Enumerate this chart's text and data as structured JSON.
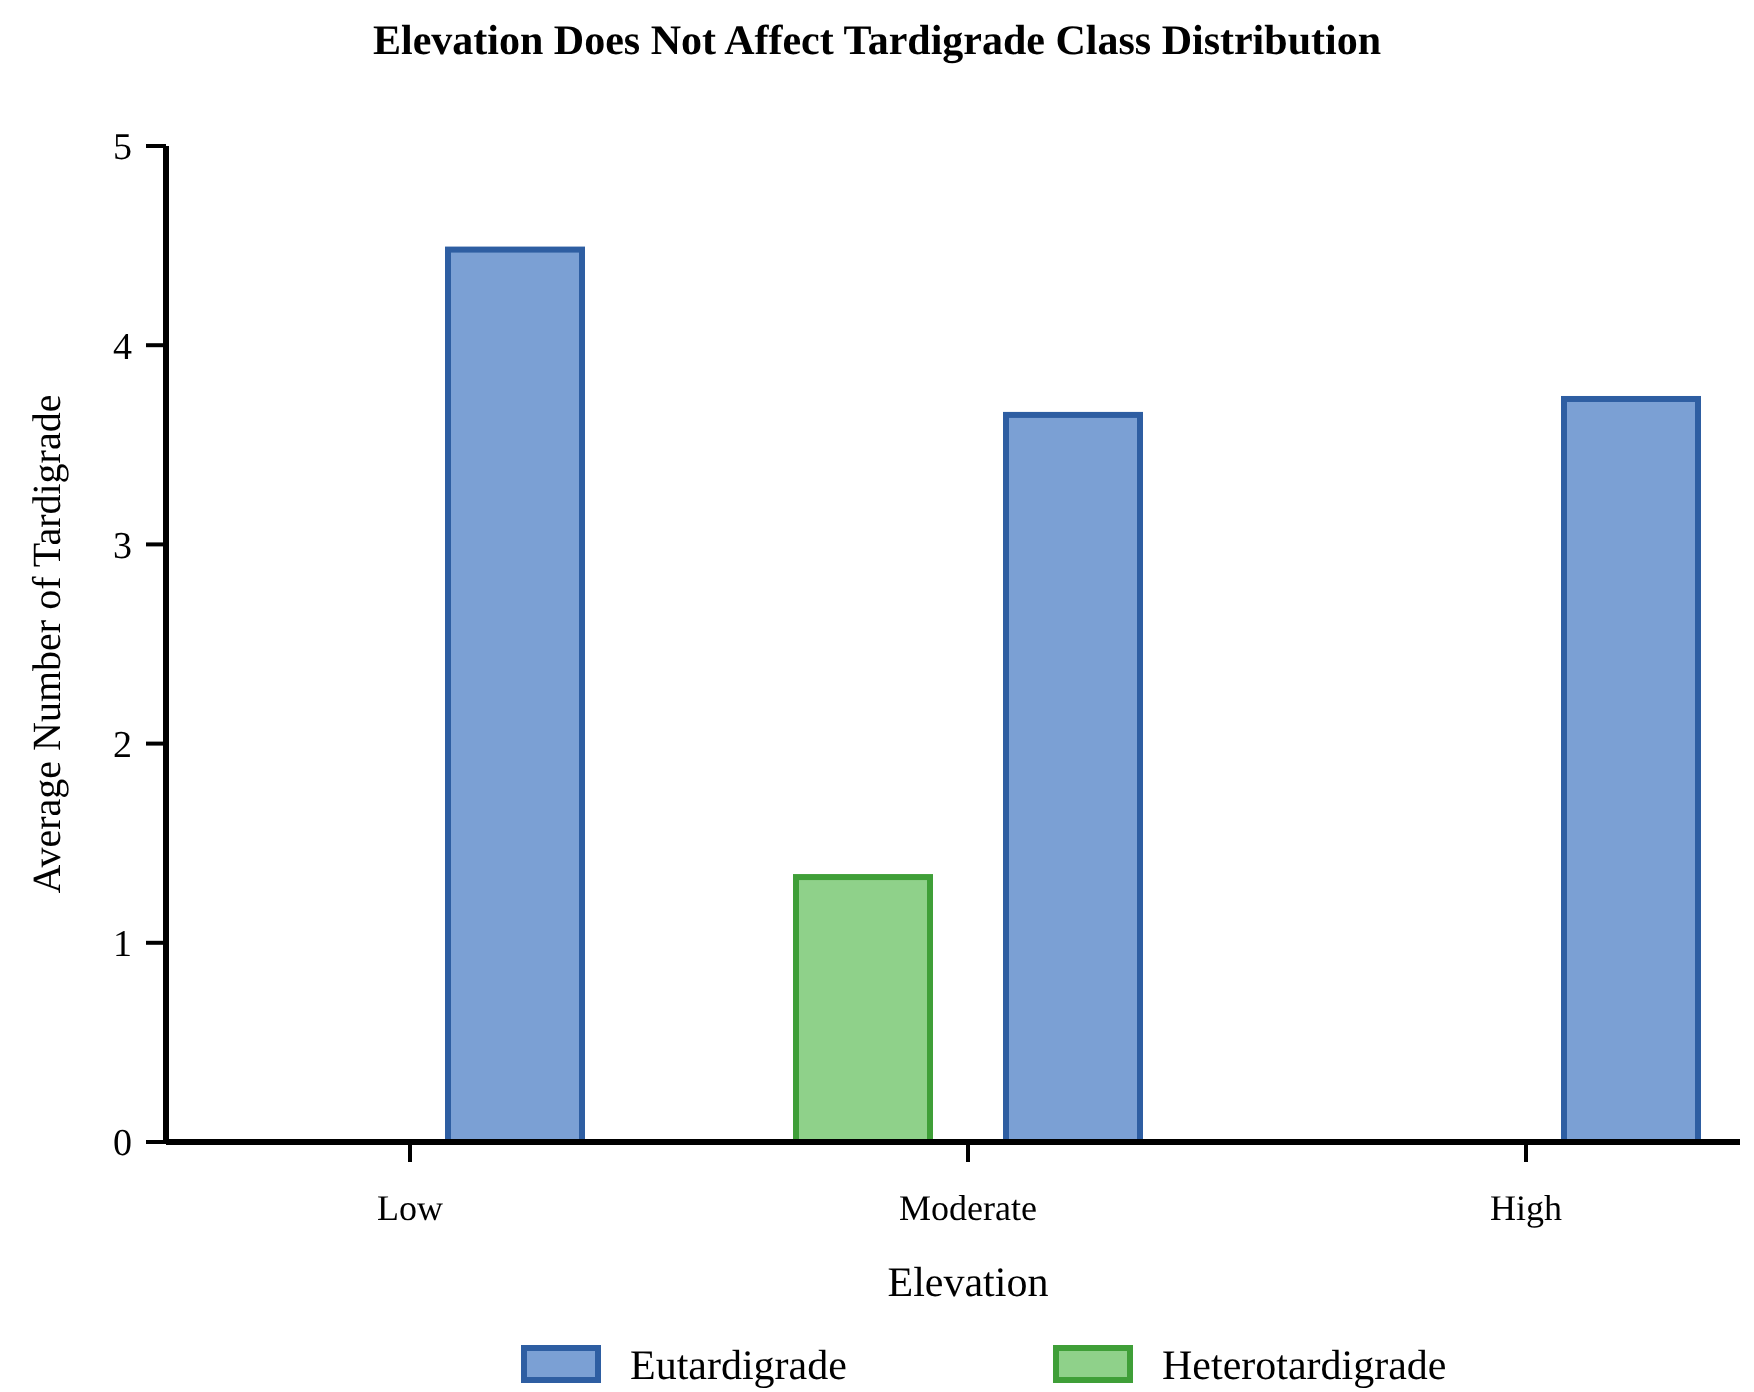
{
  "chart_data": {
    "type": "bar",
    "title": "Elevation Does Not Affect Tardigrade Class Distribution",
    "xlabel": "Elevation",
    "ylabel": "Average Number of Tardigrade",
    "categories": [
      "Low",
      "Moderate",
      "High"
    ],
    "series": [
      {
        "name": "Heterotardigrade",
        "color": "#8fd18a",
        "values": [
          0,
          1.33,
          0
        ]
      },
      {
        "name": "Eutardigrade",
        "color": "#7ba0d4",
        "values": [
          4.48,
          3.65,
          3.73
        ]
      }
    ],
    "ylim": [
      0,
      5
    ],
    "yticks": [
      0,
      1,
      2,
      3,
      4,
      5
    ],
    "grid": false,
    "legend": "bottom"
  }
}
